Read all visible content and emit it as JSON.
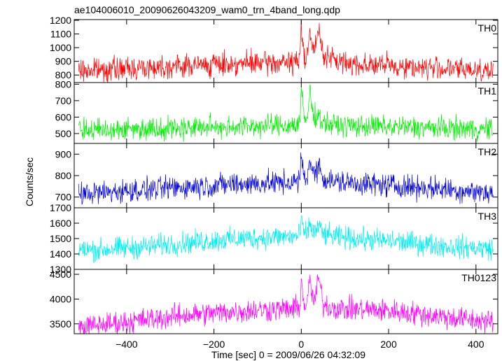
{
  "chart_data": {
    "type": "line",
    "title": "ae104006010_20090626043209_wam0_trn_4band_long.qdp",
    "xlabel": "Time [sec] 0 = 2009/06/26 04:32:09",
    "ylabel": "Counts/sec",
    "xlim": [
      -520,
      450
    ],
    "xticks": [
      -400,
      -200,
      0,
      200,
      400
    ],
    "xtick_labels": [
      "−400",
      "−200",
      "0",
      "200",
      "400"
    ],
    "grid": false,
    "panels": [
      {
        "name": "TH0",
        "color": "#ff0000",
        "ylim": [
          745,
          1205
        ],
        "yticks": [
          800,
          900,
          1000,
          1100,
          1200
        ],
        "ytick_labels": [
          "800",
          "900",
          "1000",
          "1100",
          "1200"
        ],
        "series": {
          "x": [
            -510,
            -480,
            -450,
            -420,
            -390,
            -360,
            -330,
            -300,
            -270,
            -240,
            -210,
            -180,
            -150,
            -120,
            -90,
            -60,
            -30,
            -10,
            -3,
            0,
            3,
            6,
            10,
            15,
            20,
            25,
            30,
            35,
            40,
            50,
            60,
            80,
            100,
            130,
            160,
            190,
            220,
            250,
            280,
            310,
            340,
            370,
            400,
            440
          ],
          "y": [
            830,
            835,
            840,
            845,
            850,
            855,
            860,
            865,
            868,
            872,
            876,
            880,
            882,
            884,
            886,
            888,
            890,
            895,
            910,
            1200,
            1050,
            960,
            940,
            990,
            1120,
            1010,
            960,
            1060,
            1120,
            960,
            930,
            900,
            890,
            880,
            875,
            870,
            865,
            860,
            855,
            850,
            845,
            840,
            840,
            835
          ]
        }
      },
      {
        "name": "TH1",
        "color": "#00ee00",
        "ylim": [
          440,
          810
        ],
        "yticks": [
          500,
          600,
          700,
          800
        ],
        "ytick_labels": [
          "500",
          "600",
          "700",
          "800"
        ],
        "series": {
          "x": [
            -510,
            -480,
            -450,
            -420,
            -390,
            -360,
            -330,
            -300,
            -270,
            -240,
            -210,
            -180,
            -150,
            -120,
            -90,
            -60,
            -30,
            -10,
            -3,
            0,
            3,
            6,
            10,
            15,
            20,
            25,
            30,
            35,
            40,
            50,
            60,
            80,
            100,
            130,
            160,
            190,
            220,
            250,
            280,
            310,
            340,
            370,
            400,
            440
          ],
          "y": [
            520,
            522,
            524,
            526,
            528,
            530,
            532,
            534,
            536,
            538,
            540,
            542,
            544,
            545,
            546,
            548,
            550,
            555,
            570,
            780,
            680,
            600,
            580,
            610,
            760,
            650,
            600,
            620,
            610,
            570,
            560,
            550,
            548,
            546,
            544,
            542,
            540,
            538,
            536,
            534,
            532,
            530,
            528,
            526
          ]
        }
      },
      {
        "name": "TH2",
        "color": "#0000dd",
        "ylim": [
          650,
          950
        ],
        "yticks": [
          700,
          800,
          900
        ],
        "ytick_labels": [
          "700",
          "800",
          "900"
        ],
        "series": {
          "x": [
            -510,
            -480,
            -450,
            -420,
            -390,
            -360,
            -330,
            -300,
            -270,
            -240,
            -210,
            -180,
            -150,
            -120,
            -90,
            -60,
            -30,
            -10,
            -3,
            0,
            3,
            6,
            10,
            15,
            20,
            25,
            30,
            35,
            40,
            50,
            60,
            80,
            100,
            130,
            160,
            190,
            220,
            250,
            280,
            310,
            340,
            370,
            400,
            440
          ],
          "y": [
            715,
            718,
            722,
            726,
            730,
            734,
            738,
            742,
            746,
            750,
            754,
            757,
            760,
            762,
            764,
            766,
            768,
            770,
            775,
            905,
            830,
            800,
            790,
            810,
            880,
            820,
            800,
            830,
            850,
            790,
            780,
            770,
            768,
            764,
            760,
            756,
            752,
            748,
            744,
            740,
            735,
            730,
            725,
            720
          ]
        }
      },
      {
        "name": "TH3",
        "color": "#00eeee",
        "ylim": [
          1300,
          1700
        ],
        "yticks": [
          1300,
          1400,
          1500,
          1600,
          1700
        ],
        "ytick_labels": [
          "1300",
          "1400",
          "1500",
          "1600",
          "1700"
        ],
        "series": {
          "x": [
            -510,
            -480,
            -450,
            -420,
            -390,
            -360,
            -330,
            -300,
            -270,
            -240,
            -210,
            -180,
            -150,
            -120,
            -90,
            -60,
            -30,
            -10,
            -3,
            0,
            3,
            6,
            10,
            15,
            20,
            25,
            30,
            35,
            40,
            50,
            60,
            80,
            100,
            130,
            160,
            190,
            220,
            250,
            280,
            310,
            340,
            370,
            400,
            440
          ],
          "y": [
            1420,
            1425,
            1430,
            1435,
            1440,
            1448,
            1455,
            1462,
            1470,
            1478,
            1485,
            1492,
            1498,
            1503,
            1507,
            1510,
            1512,
            1514,
            1520,
            1640,
            1560,
            1540,
            1530,
            1545,
            1600,
            1550,
            1535,
            1560,
            1580,
            1530,
            1520,
            1510,
            1505,
            1498,
            1492,
            1486,
            1480,
            1472,
            1465,
            1458,
            1450,
            1445,
            1440,
            1435
          ]
        }
      },
      {
        "name": "TH0123",
        "color": "#ff00ff",
        "ylim": [
          3300,
          4600
        ],
        "yticks": [
          3500,
          4000,
          4500
        ],
        "ytick_labels": [
          "3500",
          "4000",
          "4500"
        ],
        "series": {
          "x": [
            -510,
            -480,
            -450,
            -420,
            -390,
            -360,
            -330,
            -300,
            -270,
            -240,
            -210,
            -180,
            -150,
            -120,
            -90,
            -60,
            -30,
            -10,
            -3,
            0,
            3,
            6,
            10,
            15,
            20,
            25,
            30,
            35,
            40,
            50,
            60,
            80,
            100,
            130,
            160,
            190,
            220,
            250,
            280,
            310,
            340,
            370,
            400,
            440
          ],
          "y": [
            3420,
            3460,
            3490,
            3520,
            3550,
            3580,
            3610,
            3640,
            3670,
            3690,
            3710,
            3730,
            3750,
            3765,
            3780,
            3790,
            3800,
            3805,
            3830,
            4550,
            4050,
            3900,
            3880,
            4000,
            4400,
            4050,
            3950,
            4150,
            4450,
            3900,
            3850,
            3820,
            3800,
            3790,
            3780,
            3770,
            3750,
            3720,
            3690,
            3660,
            3630,
            3600,
            3570,
            3530
          ]
        }
      }
    ]
  }
}
